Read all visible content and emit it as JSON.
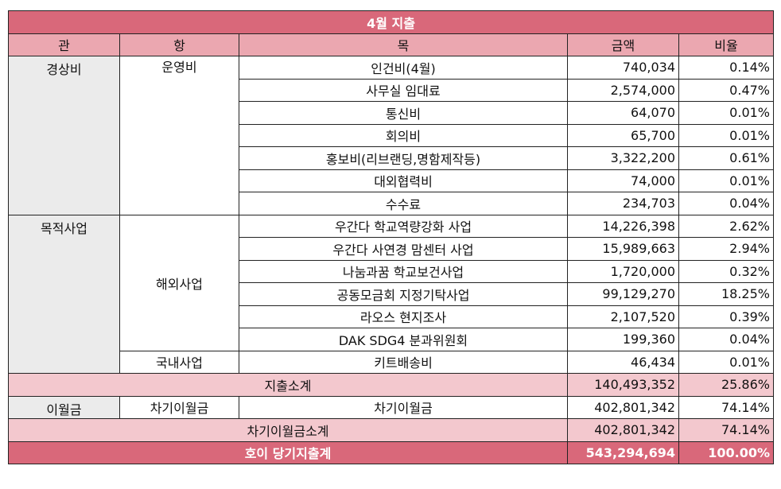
{
  "title": "4월 지출",
  "headers": [
    "관",
    "항",
    "목",
    "금액",
    "비율"
  ],
  "blocks": [
    {
      "sections": [
        {
          "gwan": "경상비",
          "hang": [
            {
              "name": "운영비",
              "items": [
                {
                  "mok": "인건비(4월)",
                  "amount": "740,034",
                  "ratio": "0.14%"
                },
                {
                  "mok": "사무실 임대료",
                  "amount": "2,574,000",
                  "ratio": "0.47%"
                },
                {
                  "mok": "통신비",
                  "amount": "64,070",
                  "ratio": "0.01%"
                },
                {
                  "mok": "회의비",
                  "amount": "65,700",
                  "ratio": "0.01%"
                },
                {
                  "mok": "홍보비(리브랜딩,명함제작등)",
                  "amount": "3,322,200",
                  "ratio": "0.61%"
                },
                {
                  "mok": "대외협력비",
                  "amount": "74,000",
                  "ratio": "0.01%"
                },
                {
                  "mok": "수수료",
                  "amount": "234,703",
                  "ratio": "0.04%"
                }
              ]
            }
          ]
        },
        {
          "gwan": "목적사업",
          "hang": [
            {
              "name": "해외사업",
              "items": [
                {
                  "mok": "우간다 학교역량강화 사업",
                  "amount": "14,226,398",
                  "ratio": "2.62%"
                },
                {
                  "mok": "우간다 사연경 맘센터 사업",
                  "amount": "15,989,663",
                  "ratio": "2.94%"
                },
                {
                  "mok": "나눔과꿈 학교보건사업",
                  "amount": "1,720,000",
                  "ratio": "0.32%"
                },
                {
                  "mok": "공동모금회 지정기탁사업",
                  "amount": "99,129,270",
                  "ratio": "18.25%"
                },
                {
                  "mok": "라오스 현지조사",
                  "amount": "2,107,520",
                  "ratio": "0.39%"
                },
                {
                  "mok": "DAK SDG4 분과위원회",
                  "amount": "199,360",
                  "ratio": "0.04%"
                }
              ]
            },
            {
              "name": "국내사업",
              "items": [
                {
                  "mok": "키트배송비",
                  "amount": "46,434",
                  "ratio": "0.01%"
                }
              ]
            }
          ]
        }
      ],
      "subtotal": {
        "label": "지출소계",
        "amount": "140,493,352",
        "ratio": "25.86%"
      }
    },
    {
      "sections": [
        {
          "gwan": "이월금",
          "hang": [
            {
              "name": "차기이월금",
              "items": [
                {
                  "mok": "차기이월금",
                  "amount": "402,801,342",
                  "ratio": "74.14%"
                }
              ]
            }
          ]
        }
      ],
      "subtotal": {
        "label": "차기이월금소계",
        "amount": "402,801,342",
        "ratio": "74.14%"
      }
    }
  ],
  "total": {
    "label": "호이 당기지출계",
    "amount": "543,294,694",
    "ratio": "100.00%"
  }
}
